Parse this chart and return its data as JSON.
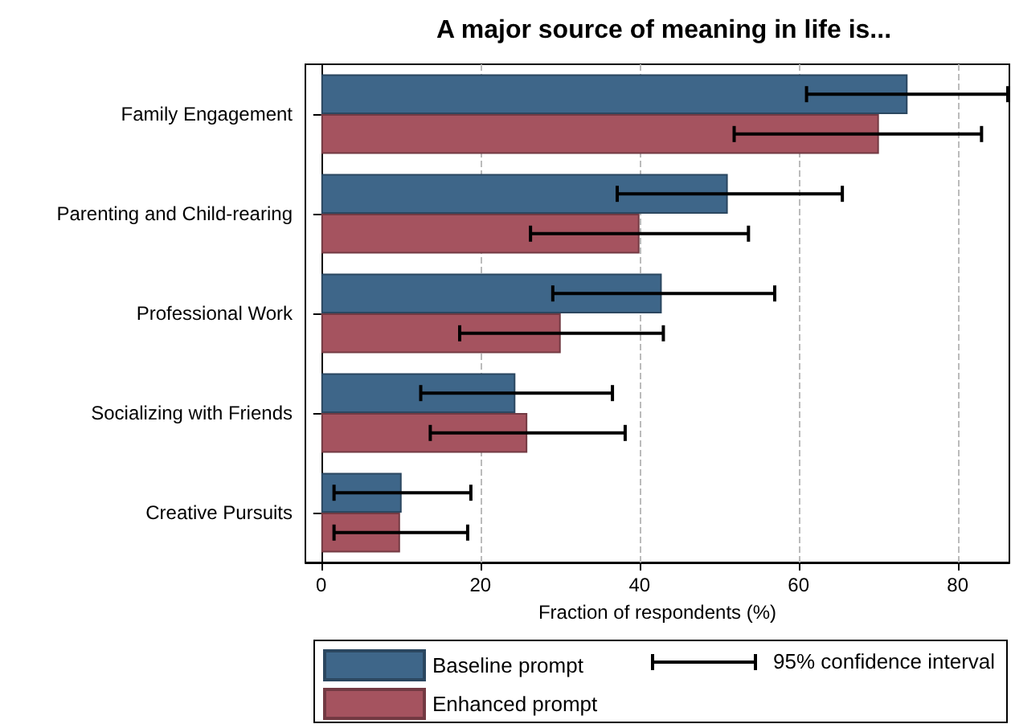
{
  "chart_data": {
    "type": "bar",
    "orientation": "horizontal",
    "title": "A major source of meaning in life is...",
    "xlabel": "Fraction of respondents (%)",
    "categories": [
      "Family Engagement",
      "Parenting and Child-rearing",
      "Professional Work",
      "Socializing with Friends",
      "Creative Pursuits"
    ],
    "series": [
      {
        "name": "Baseline prompt",
        "color": "#3e6689",
        "values": [
          73.7,
          51.1,
          42.8,
          24.4,
          10.1
        ],
        "errors": [
          [
            61,
            86.3
          ],
          [
            37.2,
            65.5
          ],
          [
            29.1,
            57
          ],
          [
            12.5,
            36.6
          ],
          [
            1.6,
            18.8
          ]
        ]
      },
      {
        "name": "Enhanced prompt",
        "color": "#a5535f",
        "values": [
          70.1,
          40,
          30.1,
          25.9,
          9.9
        ],
        "errors": [
          [
            51.9,
            83
          ],
          [
            26.3,
            53.7
          ],
          [
            17.4,
            43
          ],
          [
            13.7,
            38.2
          ],
          [
            1.6,
            18.4
          ]
        ]
      }
    ],
    "annotations": [
      "95% confidence interval"
    ],
    "xlim": [
      -2,
      86.5
    ],
    "xticks": [
      0,
      20,
      40,
      60,
      80
    ],
    "grid": "x",
    "legend": "bottom"
  }
}
